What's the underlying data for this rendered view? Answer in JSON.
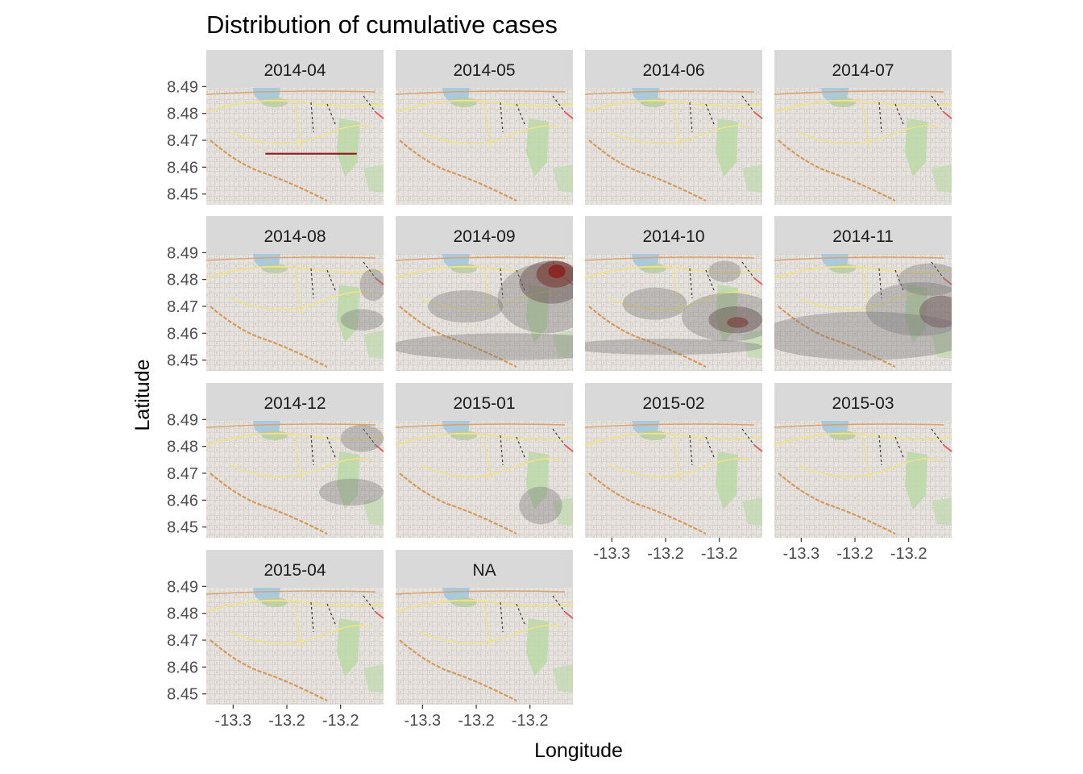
{
  "chart_data": {
    "type": "faceted-map-density",
    "title": "Distribution of cumulative cases",
    "xlabel": "Longitude",
    "ylabel": "Latitude",
    "x_tick_labels": [
      "-13.3",
      "-13.2",
      "-13.2"
    ],
    "y_tick_labels": [
      "8.49",
      "8.48",
      "8.47",
      "8.46",
      "8.45"
    ],
    "x_ticks": [
      -13.28,
      -13.23,
      -13.18
    ],
    "y_ticks": [
      8.49,
      8.48,
      8.47,
      8.46,
      8.45
    ],
    "xlim": [
      -13.305,
      -13.14
    ],
    "ylim": [
      8.446,
      8.4895
    ],
    "density_fill_color": "#7a7a7a",
    "density_high_color": "#8b1a1a",
    "panels": [
      {
        "label": "2014-04",
        "blobs": [],
        "line": {
          "x": [
            -13.25,
            -13.165
          ],
          "lat": 8.465
        }
      },
      {
        "label": "2014-05",
        "blobs": []
      },
      {
        "label": "2014-06",
        "blobs": []
      },
      {
        "label": "2014-07",
        "blobs": []
      },
      {
        "label": "2014-08",
        "blobs": [
          {
            "lon": -13.16,
            "lat": 8.465,
            "rlon": 0.02,
            "rlat": 0.004,
            "level": 1
          },
          {
            "lon": -13.15,
            "lat": 8.478,
            "rlon": 0.012,
            "rlat": 0.006,
            "level": 1
          }
        ]
      },
      {
        "label": "2014-09",
        "blobs": [
          {
            "lon": -13.2,
            "lat": 8.455,
            "rlon": 0.11,
            "rlat": 0.005,
            "level": 1
          },
          {
            "lon": -13.24,
            "lat": 8.47,
            "rlon": 0.035,
            "rlat": 0.006,
            "level": 1
          },
          {
            "lon": -13.165,
            "lat": 8.473,
            "rlon": 0.045,
            "rlat": 0.013,
            "level": 1
          },
          {
            "lon": -13.16,
            "lat": 8.479,
            "rlon": 0.03,
            "rlat": 0.008,
            "level": 2
          },
          {
            "lon": -13.156,
            "lat": 8.482,
            "rlon": 0.018,
            "rlat": 0.005,
            "level": 3
          },
          {
            "lon": -13.155,
            "lat": 8.483,
            "rlon": 0.008,
            "rlat": 0.0025,
            "level": 4
          }
        ]
      },
      {
        "label": "2014-10",
        "blobs": [
          {
            "lon": -13.23,
            "lat": 8.455,
            "rlon": 0.09,
            "rlat": 0.003,
            "level": 1
          },
          {
            "lon": -13.24,
            "lat": 8.471,
            "rlon": 0.03,
            "rlat": 0.006,
            "level": 1
          },
          {
            "lon": -13.17,
            "lat": 8.466,
            "rlon": 0.045,
            "rlat": 0.009,
            "level": 1
          },
          {
            "lon": -13.165,
            "lat": 8.465,
            "rlon": 0.025,
            "rlat": 0.005,
            "level": 2
          },
          {
            "lon": -13.163,
            "lat": 8.464,
            "rlon": 0.01,
            "rlat": 0.002,
            "level": 3
          },
          {
            "lon": -13.175,
            "lat": 8.483,
            "rlon": 0.015,
            "rlat": 0.004,
            "level": 1
          }
        ]
      },
      {
        "label": "2014-11",
        "blobs": [
          {
            "lon": -13.22,
            "lat": 8.459,
            "rlon": 0.1,
            "rlat": 0.009,
            "level": 1
          },
          {
            "lon": -13.17,
            "lat": 8.469,
            "rlon": 0.05,
            "rlat": 0.01,
            "level": 1
          },
          {
            "lon": -13.16,
            "lat": 8.48,
            "rlon": 0.03,
            "rlat": 0.006,
            "level": 1
          },
          {
            "lon": -13.15,
            "lat": 8.468,
            "rlon": 0.02,
            "rlat": 0.006,
            "level": 2
          }
        ]
      },
      {
        "label": "2014-12",
        "blobs": [
          {
            "lon": -13.17,
            "lat": 8.463,
            "rlon": 0.03,
            "rlat": 0.005,
            "level": 1
          },
          {
            "lon": -13.16,
            "lat": 8.483,
            "rlon": 0.02,
            "rlat": 0.005,
            "level": 1
          }
        ]
      },
      {
        "label": "2015-01",
        "blobs": [
          {
            "lon": -13.17,
            "lat": 8.458,
            "rlon": 0.02,
            "rlat": 0.007,
            "level": 1
          }
        ]
      },
      {
        "label": "2015-02",
        "blobs": []
      },
      {
        "label": "2015-03",
        "blobs": []
      },
      {
        "label": "2015-04",
        "blobs": []
      },
      {
        "label": "NA",
        "blobs": []
      }
    ]
  }
}
